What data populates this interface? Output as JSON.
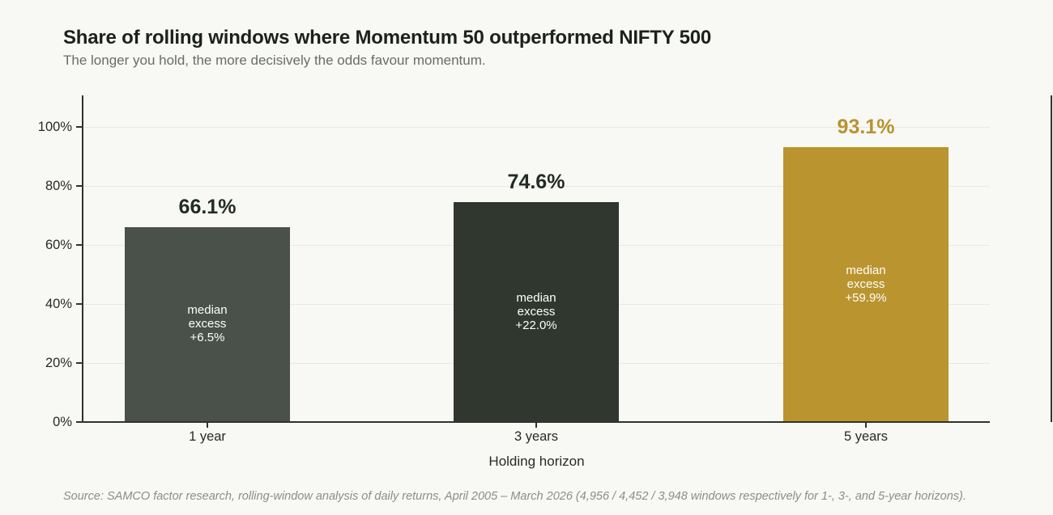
{
  "page": {
    "background": "#f8f8f5"
  },
  "header": {
    "title": "Share of rolling windows where Momentum 50 outperformed NIFTY 500",
    "subtitle": "The longer you hold, the more decisively the odds favour momentum."
  },
  "footer": {
    "source": "Source: SAMCO factor research, rolling-window analysis of daily returns, April 2005 – March 2026 (4,956 / 4,452 / 3,948 windows respectively for 1-, 3-, and 5-year horizons)."
  },
  "chart_data": {
    "type": "bar",
    "title": "Share of rolling windows where Momentum 50 outperformed NIFTY 500",
    "subtitle": "The longer you hold, the more decisively the odds favour momentum.",
    "xlabel": "Holding horizon",
    "ylabel": "",
    "categories": [
      "1 year",
      "3 years",
      "5 years"
    ],
    "values": [
      66.1,
      74.6,
      93.1
    ],
    "value_labels": [
      "66.1%",
      "74.6%",
      "93.1%"
    ],
    "inner_labels": [
      [
        "median",
        "excess",
        "+6.5%"
      ],
      [
        "median",
        "excess",
        "+22.0%"
      ],
      [
        "median",
        "excess",
        "+59.9%"
      ]
    ],
    "bar_colors": [
      "#49514A",
      "#2F372F",
      "#BA942E"
    ],
    "value_label_colors": [
      "#232B25",
      "#232B25",
      "#B8932D"
    ],
    "inner_label_color": "#ffffff",
    "yticks": [
      0,
      20,
      40,
      60,
      80,
      100
    ],
    "ytick_labels": [
      "0%",
      "20%",
      "40%",
      "60%",
      "80%",
      "100%"
    ],
    "ylim": [
      0,
      110
    ],
    "grid": true,
    "legend_position": "none",
    "grid_color": "#e7e7e3",
    "axis_color": "#2e332f",
    "tick_label_color": "#262b27",
    "source": "Source: SAMCO factor research, rolling-window analysis of daily returns, April 2005 – March 2026 (4,956 / 4,452 / 3,948 windows respectively for 1-, 3-, and 5-year horizons)."
  }
}
